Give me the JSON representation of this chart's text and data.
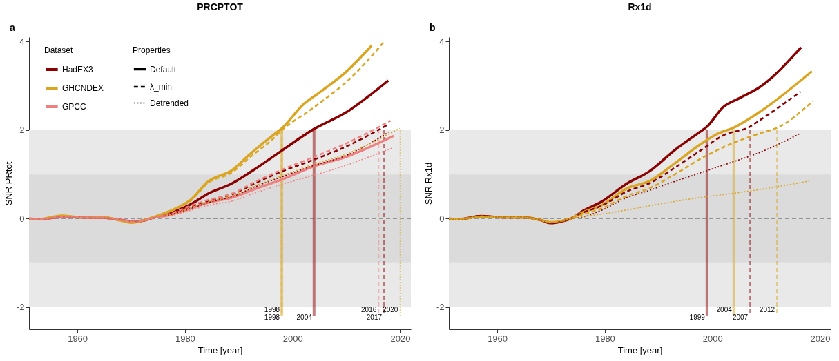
{
  "chart_data": [
    {
      "type": "line",
      "title": "PRCPTOT",
      "xlabel": "Time [year]",
      "ylabel": "SNR PRtot",
      "legend_title": "Dataset",
      "legend": "top left",
      "annotations": [
        "a",
        "Properties",
        "Default",
        "λ_min",
        "Detrended"
      ],
      "xlim": [
        1951,
        2022
      ],
      "ylim": [
        -2.5,
        4.1
      ],
      "xticks": [
        1960,
        1980,
        2000,
        2020
      ],
      "yticks": [
        -2,
        0,
        2,
        4
      ],
      "bands": [
        {
          "axis": "y",
          "from": -2,
          "to": 2,
          "color": "#e9e9e9"
        },
        {
          "axis": "y",
          "from": -1,
          "to": 1,
          "color": "#dbdbdb"
        }
      ],
      "ref_lines": [
        {
          "axis": "y",
          "value": 0,
          "color": "#777777",
          "line_style": "dashed"
        },
        {
          "axis": "x",
          "value": 1998,
          "label": "1998",
          "color": "#daa520",
          "line_style": "solid"
        },
        {
          "axis": "x",
          "value": 1998,
          "label": "1998",
          "color": "#daa520",
          "line_style": "dashed"
        },
        {
          "axis": "x",
          "value": 2016,
          "label": "2016",
          "color": "#f08080",
          "line_style": "dashed"
        },
        {
          "axis": "x",
          "value": 2004,
          "label": "2004",
          "color": "#8b0000",
          "line_style": "solid"
        },
        {
          "axis": "x",
          "value": 2020,
          "label": "2020",
          "color": "#daa520",
          "line_style": "dotted"
        },
        {
          "axis": "x",
          "value": 2017,
          "label": "2017",
          "color": "#8b0000",
          "line_style": "dashed"
        }
      ],
      "series": [
        {
          "name": "HadEX3",
          "line_style": "solid",
          "color": "#8b0000",
          "x": [
            1951,
            1953,
            1957,
            1961,
            1965,
            1968,
            1970,
            1972,
            1974,
            1977,
            1981,
            1984.2,
            1988.8,
            1993,
            1997.9,
            2003.9,
            2009.8,
            2017.8
          ],
          "values": [
            0,
            -0.01,
            0.04,
            0.03,
            0.02,
            -0.03,
            -0.06,
            -0.05,
            0.02,
            0.12,
            0.32,
            0.56,
            0.8,
            1.12,
            1.53,
            2.02,
            2.39,
            3.12
          ]
        },
        {
          "name": "GHCNDEX",
          "line_style": "solid",
          "color": "#daa520",
          "x": [
            1951,
            1953,
            1957,
            1961,
            1965,
            1968,
            1970,
            1972,
            1974,
            1978.3,
            1981,
            1984.2,
            1988.8,
            1992,
            1996.5,
            1998,
            2002,
            2005,
            2009.8,
            2014.7
          ],
          "values": [
            0,
            -0.01,
            0.07,
            0.03,
            0.03,
            -0.04,
            -0.09,
            -0.05,
            0.03,
            0.23,
            0.42,
            0.83,
            1.1,
            1.45,
            1.9,
            2.04,
            2.58,
            2.85,
            3.3,
            3.91
          ]
        },
        {
          "name": "GPCC",
          "line_style": "solid",
          "color": "#f08080",
          "x": [
            1951,
            1953,
            1957,
            1961,
            1965,
            1968,
            1970,
            1972,
            1974,
            1977,
            1980.8,
            1984.2,
            1988.8,
            1993,
            1997.9,
            2003.9,
            2009.8,
            2018.8
          ],
          "values": [
            0,
            -0.01,
            0.04,
            0.03,
            0.02,
            -0.03,
            -0.06,
            -0.05,
            0.02,
            0.08,
            0.22,
            0.36,
            0.48,
            0.67,
            0.88,
            1.18,
            1.39,
            1.87
          ]
        },
        {
          "line_style": "dashed",
          "color": "#8b0000",
          "x": [
            1951,
            1953,
            1957,
            1961,
            1965,
            1968,
            1970,
            1972,
            1974,
            1977,
            1980.8,
            1984.2,
            1988.8,
            1993,
            1997.9,
            2003.9,
            2009.8,
            2017.8
          ],
          "values": [
            0,
            -0.01,
            0.04,
            0.03,
            0.02,
            -0.03,
            -0.06,
            -0.05,
            0.02,
            0.1,
            0.27,
            0.4,
            0.55,
            0.8,
            1.06,
            1.33,
            1.62,
            2.13
          ]
        },
        {
          "line_style": "dashed",
          "color": "#daa520",
          "x": [
            1951,
            1953,
            1957,
            1961,
            1965,
            1968,
            1970,
            1972,
            1974,
            1978.3,
            1981,
            1984.2,
            1988.8,
            1992,
            1996.5,
            1998,
            2002.9,
            2006,
            2010.3,
            2016.9
          ],
          "values": [
            0,
            -0.01,
            0.07,
            0.03,
            0.03,
            -0.04,
            -0.09,
            -0.05,
            0.03,
            0.22,
            0.4,
            0.8,
            1.05,
            1.38,
            1.82,
            2,
            2.42,
            2.7,
            3.12,
            3.98
          ]
        },
        {
          "line_style": "dashed",
          "color": "#f08080",
          "x": [
            1951,
            1953,
            1957,
            1961,
            1965,
            1968,
            1970,
            1972,
            1974,
            1977,
            1980.8,
            1984.2,
            1988.8,
            1993,
            1997.9,
            2003.9,
            2009.8,
            2018.2
          ],
          "values": [
            0,
            -0.01,
            0.04,
            0.03,
            0.02,
            -0.03,
            -0.06,
            -0.05,
            0.02,
            0.1,
            0.28,
            0.42,
            0.57,
            0.83,
            1.1,
            1.39,
            1.69,
            2.21
          ]
        },
        {
          "line_style": "dotted",
          "color": "#8b0000",
          "x": [
            1951,
            1953,
            1957,
            1961,
            1965,
            1968,
            1970,
            1972,
            1974,
            1977,
            1980.8,
            1984.2,
            1988.8,
            1993,
            1997.9,
            2003.9,
            2009.8,
            2017.8
          ],
          "values": [
            0,
            -0.01,
            0.04,
            0.03,
            0.02,
            -0.03,
            -0.06,
            -0.05,
            0.02,
            0.08,
            0.22,
            0.36,
            0.5,
            0.72,
            0.94,
            1.2,
            1.42,
            1.95
          ]
        },
        {
          "line_style": "dotted",
          "color": "#daa520",
          "x": [
            1951,
            1953,
            1957,
            1961,
            1965,
            1968,
            1970,
            1972,
            1974,
            1977,
            1980.8,
            1984.2,
            1988.8,
            1993,
            1997.9,
            2003.9,
            2009.8,
            2019.9
          ],
          "values": [
            0,
            -0.01,
            0.07,
            0.03,
            0.03,
            -0.04,
            -0.09,
            -0.05,
            0.03,
            0.08,
            0.23,
            0.38,
            0.52,
            0.74,
            0.96,
            1.23,
            1.45,
            2.04
          ]
        },
        {
          "line_style": "dotted",
          "color": "#f08080",
          "x": [
            1951,
            1953,
            1957,
            1961,
            1965,
            1968,
            1970,
            1972,
            1974,
            1977,
            1980.8,
            1984.2,
            1988.8,
            1993,
            1997.9,
            2003.9,
            2009.8,
            2018.4
          ],
          "values": [
            0,
            -0.01,
            0.04,
            0.03,
            0.02,
            -0.03,
            -0.06,
            -0.05,
            0.02,
            0.06,
            0.18,
            0.3,
            0.4,
            0.58,
            0.77,
            0.98,
            1.2,
            1.59
          ]
        }
      ]
    },
    {
      "type": "line",
      "title": "Rx1d",
      "xlabel": "Time [year]",
      "ylabel": "SNR Rx1d",
      "annotations": [
        "b"
      ],
      "xlim": [
        1951,
        2022
      ],
      "ylim": [
        -2.5,
        4.1
      ],
      "xticks": [
        1960,
        1980,
        2000,
        2020
      ],
      "yticks": [
        -2,
        0,
        2,
        4
      ],
      "bands": [
        {
          "axis": "y",
          "from": -2,
          "to": 2,
          "color": "#e9e9e9"
        },
        {
          "axis": "y",
          "from": -1,
          "to": 1,
          "color": "#dbdbdb"
        }
      ],
      "ref_lines": [
        {
          "axis": "y",
          "value": 0,
          "color": "#777777",
          "line_style": "dashed"
        },
        {
          "axis": "x",
          "value": 2004,
          "label": "2004",
          "color": "#daa520",
          "line_style": "solid"
        },
        {
          "axis": "x",
          "value": 1999,
          "label": "1999",
          "color": "#8b0000",
          "line_style": "solid"
        },
        {
          "axis": "x",
          "value": 2012,
          "label": "2012",
          "color": "#daa520",
          "line_style": "dashed"
        },
        {
          "axis": "x",
          "value": 2007,
          "label": "2007",
          "color": "#8b0000",
          "line_style": "dashed"
        }
      ],
      "series": [
        {
          "line_style": "solid",
          "color": "#8b0000",
          "x": [
            1951,
            1953,
            1957,
            1961,
            1965,
            1968,
            1970,
            1972,
            1974,
            1976,
            1979.2,
            1984.2,
            1988.3,
            1993,
            1997.9,
            1999,
            2002,
            2005,
            2008.9,
            2016.5
          ],
          "values": [
            0,
            -0.01,
            0.06,
            0.03,
            0.03,
            -0.03,
            -0.1,
            -0.06,
            0.02,
            0.18,
            0.37,
            0.8,
            1.07,
            1.55,
            1.98,
            2.08,
            2.52,
            2.72,
            2.98,
            3.87
          ]
        },
        {
          "line_style": "solid",
          "color": "#daa520",
          "x": [
            1951,
            1953,
            1957,
            1961,
            1965,
            1968,
            1970,
            1972,
            1974,
            1976,
            1979.2,
            1984.2,
            1988.3,
            1993,
            1997.9,
            2001,
            2004,
            2008.9,
            2018.5
          ],
          "values": [
            0,
            -0.01,
            0.05,
            0.03,
            0.03,
            -0.03,
            -0.08,
            -0.05,
            0.02,
            0.15,
            0.29,
            0.69,
            0.85,
            1.25,
            1.69,
            1.92,
            2.06,
            2.42,
            3.33
          ]
        },
        {
          "line_style": "dashed",
          "color": "#8b0000",
          "x": [
            1951,
            1953,
            1957,
            1961,
            1965,
            1968,
            1970,
            1972,
            1974,
            1976,
            1979.2,
            1984.2,
            1988.3,
            1993,
            1997.9,
            2002,
            2007,
            2008.9,
            2016.4
          ],
          "values": [
            0,
            -0.01,
            0.06,
            0.03,
            0.03,
            -0.03,
            -0.1,
            -0.06,
            0.02,
            0.14,
            0.28,
            0.62,
            0.8,
            1.15,
            1.55,
            1.88,
            2.08,
            2.23,
            2.87
          ]
        },
        {
          "line_style": "dashed",
          "color": "#daa520",
          "x": [
            1951,
            1953,
            1957,
            1961,
            1965,
            1968,
            1970,
            1972,
            1974,
            1976,
            1979.2,
            1984.2,
            1988.3,
            1993,
            1997.9,
            2002.9,
            2008.9,
            2012,
            2018.7
          ],
          "values": [
            0,
            -0.01,
            0.05,
            0.03,
            0.03,
            -0.03,
            -0.08,
            -0.05,
            0.02,
            0.1,
            0.22,
            0.52,
            0.69,
            1,
            1.36,
            1.66,
            1.93,
            2.05,
            2.66
          ]
        },
        {
          "line_style": "dotted",
          "color": "#8b0000",
          "x": [
            1951,
            1953,
            1957,
            1961,
            1965,
            1968,
            1970,
            1972,
            1974,
            1976,
            1979.2,
            1984.2,
            1988.3,
            1993,
            1997.9,
            2003,
            2008.9,
            2016.4
          ],
          "values": [
            0,
            -0.01,
            0.06,
            0.03,
            0.03,
            -0.03,
            -0.1,
            -0.06,
            0.01,
            0.04,
            0.18,
            0.48,
            0.64,
            0.84,
            1.04,
            1.25,
            1.5,
            1.93
          ]
        },
        {
          "line_style": "dotted",
          "color": "#daa520",
          "x": [
            1951,
            1953,
            1957,
            1961,
            1965,
            1968,
            1970,
            1972,
            1974,
            1976,
            1979.2,
            1984.2,
            1990.6,
            1997.9,
            2003,
            2008.9,
            2018
          ],
          "values": [
            0,
            -0.01,
            0.05,
            0.03,
            0.03,
            -0.03,
            -0.08,
            -0.05,
            0.01,
            0.05,
            0.1,
            0.2,
            0.34,
            0.48,
            0.56,
            0.66,
            0.85
          ]
        }
      ]
    }
  ]
}
